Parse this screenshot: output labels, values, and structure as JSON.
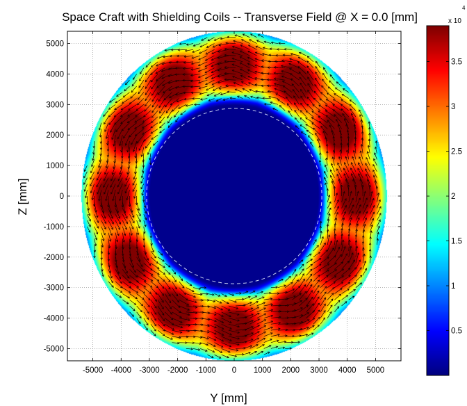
{
  "chart_data": {
    "type": "heatmap",
    "subtype": "2d-field-map-with-vector-arrows",
    "title": "Space Craft with Shielding Coils -- Transverse Field @ X = 0.0 [mm]",
    "xlabel": "Y [mm]",
    "ylabel": "Z [mm]",
    "xlim": [
      -5900,
      5900
    ],
    "ylim": [
      -5400,
      5400
    ],
    "x_ticks": [
      -5000,
      -4000,
      -3000,
      -2000,
      -1000,
      0,
      1000,
      2000,
      3000,
      4000,
      5000
    ],
    "y_ticks": [
      -5000,
      -4000,
      -3000,
      -2000,
      -1000,
      0,
      1000,
      2000,
      3000,
      4000,
      5000
    ],
    "x_tick_labels": [
      "-5000",
      "-4000",
      "-3000",
      "-2000",
      "-1000",
      "0",
      "1000",
      "2000",
      "3000",
      "4000",
      "5000"
    ],
    "y_tick_labels": [
      "-5000",
      "-4000",
      "-3000",
      "-2000",
      "-1000",
      "0",
      "1000",
      "2000",
      "3000",
      "4000",
      "5000"
    ],
    "grid": true,
    "colormap": "jet",
    "colorbar": {
      "range": [
        0,
        3.9
      ],
      "ticks": [
        0.5,
        1,
        1.5,
        2,
        2.5,
        3,
        3.5
      ],
      "tick_labels": [
        "0.5",
        "1",
        "1.5",
        "2",
        "2.5",
        "3",
        "3.5"
      ],
      "multiplier_label": "x 10",
      "exponent_label": "4"
    },
    "geometry": {
      "outer_radius": 5400,
      "inner_radius": 3100,
      "coil_count": 12,
      "coil_center_radius": 4300,
      "dashed_circle_radius": 3100
    },
    "field_profile": {
      "ring_peak_value": 3.9,
      "lobe_value_between_coils": 3.0,
      "outer_edge_value": 0.6,
      "inner_bore_value": 0.05
    }
  }
}
